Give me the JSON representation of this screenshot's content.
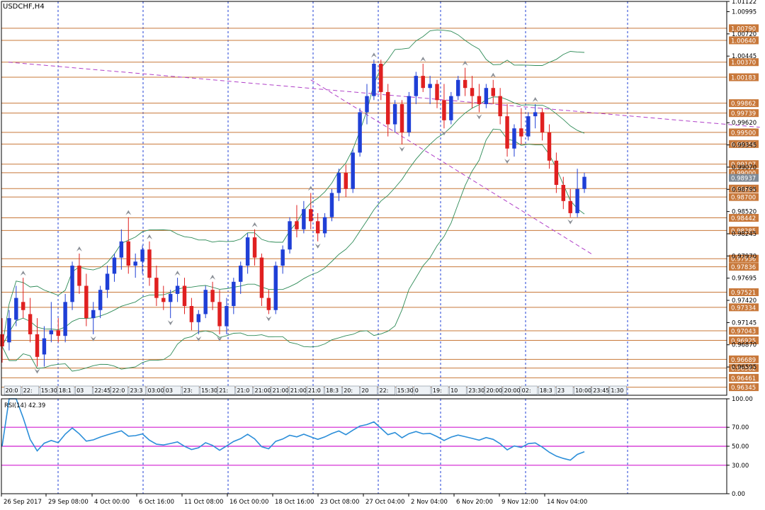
{
  "title": "USDCHF,H4",
  "chart_data": {
    "type": "candlestick",
    "symbol": "USDCHF",
    "timeframe": "H4",
    "ylim": [
      0.96245,
      1.01122
    ],
    "y_ticks": [
      "1.01122",
      "1.00995",
      "1.00720",
      "1.00445",
      "0.99620",
      "0.99345",
      "0.99070",
      "0.98795",
      "0.98520",
      "0.98245",
      "0.97970",
      "0.97695",
      "0.97420",
      "0.97145",
      "0.96870",
      "0.96595"
    ],
    "price_levels": [
      "1.00790",
      "1.00640",
      "1.00370",
      "1.00183",
      "0.99862",
      "0.99739",
      "0.99500",
      "0.99356",
      "0.99107",
      "0.99000",
      "0.98804",
      "0.98700",
      "0.98442",
      "0.98285",
      "0.97936",
      "0.97836",
      "0.97521",
      "0.97334",
      "0.97043",
      "0.96925",
      "0.96689",
      "0.96582",
      "0.96461",
      "0.96345"
    ],
    "current_price": "0.98937",
    "x_labels": [
      "26 Sep 2017",
      "29 Sep 08:00",
      "4 Oct 00:00",
      "6 Oct 16:00",
      "11 Oct 08:00",
      "16 Oct 00:00",
      "18 Oct 16:00",
      "23 Oct 08:00",
      "27 Oct 04:00",
      "2 Nov 04:00",
      "6 Nov 20:00",
      "9 Nov 12:00",
      "14 Nov 04:00"
    ],
    "time_boxes": [
      "20:0",
      "22:",
      "15:30",
      "18:1",
      "03",
      "22:45",
      "22:0",
      "23:3",
      "03:00",
      "03",
      "23:",
      "15:30",
      "21:",
      "21:0",
      "21:00",
      "21:00",
      "21:00",
      "21:0",
      "18:3",
      "20:",
      "20",
      "22:",
      "15:30",
      "0",
      "19:",
      "10",
      "23:30",
      "20:00",
      "20:00",
      "02:",
      "18:3",
      "23",
      "10:00",
      "23:45",
      "1:30"
    ],
    "candles": [
      [
        0.97,
        0.972,
        0.9665,
        0.9685
      ],
      [
        0.969,
        0.973,
        0.968,
        0.972
      ],
      [
        0.9718,
        0.976,
        0.971,
        0.9745
      ],
      [
        0.974,
        0.977,
        0.972,
        0.973
      ],
      [
        0.9725,
        0.9745,
        0.969,
        0.97
      ],
      [
        0.97,
        0.972,
        0.966,
        0.9672
      ],
      [
        0.9675,
        0.971,
        0.966,
        0.9695
      ],
      [
        0.97,
        0.974,
        0.969,
        0.9705
      ],
      [
        0.9705,
        0.972,
        0.969,
        0.9698
      ],
      [
        0.9698,
        0.975,
        0.969,
        0.974
      ],
      [
        0.974,
        0.979,
        0.973,
        0.9785
      ],
      [
        0.9785,
        0.98,
        0.975,
        0.976
      ],
      [
        0.976,
        0.9775,
        0.971,
        0.972
      ],
      [
        0.972,
        0.974,
        0.97,
        0.973
      ],
      [
        0.973,
        0.976,
        0.972,
        0.9755
      ],
      [
        0.9755,
        0.9785,
        0.9745,
        0.9775
      ],
      [
        0.9775,
        0.98,
        0.9765,
        0.9795
      ],
      [
        0.9795,
        0.983,
        0.978,
        0.9815
      ],
      [
        0.9815,
        0.9845,
        0.9775,
        0.9785
      ],
      [
        0.9785,
        0.98,
        0.977,
        0.979
      ],
      [
        0.979,
        0.981,
        0.9775,
        0.9805
      ],
      [
        0.9805,
        0.9815,
        0.976,
        0.977
      ],
      [
        0.977,
        0.9785,
        0.9735,
        0.9745
      ],
      [
        0.9745,
        0.976,
        0.973,
        0.974
      ],
      [
        0.974,
        0.9755,
        0.972,
        0.975
      ],
      [
        0.975,
        0.977,
        0.974,
        0.976
      ],
      [
        0.976,
        0.977,
        0.9725,
        0.9735
      ],
      [
        0.9735,
        0.9745,
        0.9705,
        0.9715
      ],
      [
        0.9715,
        0.973,
        0.97,
        0.9725
      ],
      [
        0.9725,
        0.976,
        0.972,
        0.9755
      ],
      [
        0.9755,
        0.9765,
        0.973,
        0.974
      ],
      [
        0.974,
        0.9755,
        0.97,
        0.971
      ],
      [
        0.971,
        0.9745,
        0.97,
        0.9735
      ],
      [
        0.9735,
        0.977,
        0.9725,
        0.9765
      ],
      [
        0.9765,
        0.979,
        0.975,
        0.9785
      ],
      [
        0.9785,
        0.9825,
        0.9775,
        0.982
      ],
      [
        0.982,
        0.983,
        0.9785,
        0.9795
      ],
      [
        0.9795,
        0.98,
        0.9735,
        0.9745
      ],
      [
        0.9745,
        0.9755,
        0.9725,
        0.973
      ],
      [
        0.973,
        0.979,
        0.9725,
        0.9785
      ],
      [
        0.9785,
        0.981,
        0.9775,
        0.9805
      ],
      [
        0.9805,
        0.9845,
        0.98,
        0.984
      ],
      [
        0.984,
        0.986,
        0.982,
        0.983
      ],
      [
        0.983,
        0.9865,
        0.9825,
        0.9855
      ],
      [
        0.9855,
        0.9875,
        0.983,
        0.984
      ],
      [
        0.984,
        0.985,
        0.9815,
        0.9825
      ],
      [
        0.9825,
        0.985,
        0.982,
        0.9845
      ],
      [
        0.9845,
        0.988,
        0.984,
        0.9875
      ],
      [
        0.9875,
        0.9905,
        0.9865,
        0.99
      ],
      [
        0.99,
        0.991,
        0.987,
        0.988
      ],
      [
        0.988,
        0.993,
        0.9875,
        0.9925
      ],
      [
        0.9925,
        0.998,
        0.992,
        0.9975
      ],
      [
        0.9975,
        1.001,
        0.996,
        0.9995
      ],
      [
        0.9995,
        1.004,
        0.999,
        1.0035
      ],
      [
        1.0035,
        1.004,
        0.999,
        1.0
      ],
      [
        1.0,
        1.001,
        0.9945,
        0.996
      ],
      [
        0.996,
        0.999,
        0.995,
        0.9985
      ],
      [
        0.9985,
        0.999,
        0.9935,
        0.995
      ],
      [
        0.995,
        1.0,
        0.9945,
        0.9995
      ],
      [
        0.9995,
        1.0025,
        0.9985,
        1.002
      ],
      [
        1.002,
        1.0035,
        1.0,
        1.0005
      ],
      [
        1.0005,
        1.002,
        0.9985,
        1.001
      ],
      [
        1.001,
        1.0015,
        0.998,
        0.999
      ],
      [
        0.999,
        1.001,
        0.9955,
        0.9965
      ],
      [
        0.9965,
        1.0,
        0.996,
        0.9995
      ],
      [
        0.9995,
        1.002,
        0.999,
        1.0015
      ],
      [
        1.0015,
        1.003,
        0.9995,
        1.0005
      ],
      [
        1.0005,
        1.002,
        0.998,
        0.9995
      ],
      [
        0.9995,
        1.001,
        0.9975,
        0.9985
      ],
      [
        0.9985,
        1.001,
        0.998,
        1.0005
      ],
      [
        1.0005,
        1.0015,
        0.9985,
        0.9995
      ],
      [
        0.9995,
        1.0005,
        0.996,
        0.997
      ],
      [
        0.997,
        0.9985,
        0.992,
        0.993
      ],
      [
        0.993,
        0.996,
        0.992,
        0.9955
      ],
      [
        0.9955,
        0.998,
        0.9935,
        0.9945
      ],
      [
        0.9945,
        0.9975,
        0.994,
        0.997
      ],
      [
        0.997,
        0.9985,
        0.9955,
        0.9975
      ],
      [
        0.9975,
        0.998,
        0.994,
        0.995
      ],
      [
        0.995,
        0.996,
        0.9905,
        0.9915
      ],
      [
        0.9915,
        0.9925,
        0.9875,
        0.9885
      ],
      [
        0.9885,
        0.9895,
        0.9855,
        0.9865
      ],
      [
        0.9865,
        0.988,
        0.9845,
        0.985
      ],
      [
        0.985,
        0.9905,
        0.9845,
        0.988
      ],
      [
        0.988,
        0.99,
        0.9875,
        0.9895
      ]
    ],
    "bollinger": {
      "period": 20
    },
    "trendlines": [
      [
        0.9,
        1.0037,
        70,
        0.9985
      ],
      [
        44,
        1.0015,
        70,
        0.9875
      ]
    ],
    "rsi": {
      "label": "RSI(14) 42.39",
      "period": 14,
      "value": 42.39,
      "ylim": [
        0,
        100
      ],
      "y_ticks": [
        "100.00",
        "70.00",
        "50.00",
        "30.00",
        "0.00"
      ],
      "levels": [
        70,
        50,
        30
      ]
    }
  }
}
